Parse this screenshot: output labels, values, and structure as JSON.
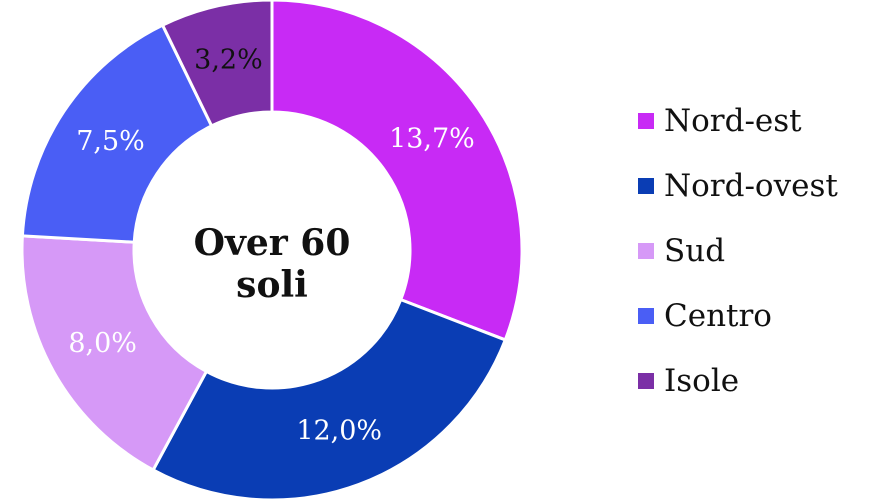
{
  "chart_data": {
    "type": "pie",
    "variant": "donut",
    "center_label": [
      "Over 60",
      "soli"
    ],
    "categories": [
      "Nord-est",
      "Nord-ovest",
      "Sud",
      "Centro",
      "Isole"
    ],
    "values": [
      13.7,
      12.0,
      8.0,
      7.5,
      3.2
    ],
    "data_labels": [
      "13,7%",
      "12,0%",
      "8,0%",
      "7,5%",
      "3,2%"
    ],
    "colors": [
      "#c82af5",
      "#0a3db4",
      "#d699f7",
      "#4a5ef5",
      "#7b2fa6"
    ],
    "label_colors": [
      "#ffffff",
      "#ffffff",
      "#ffffff",
      "#ffffff",
      "#111111"
    ],
    "legend_position": "right"
  }
}
